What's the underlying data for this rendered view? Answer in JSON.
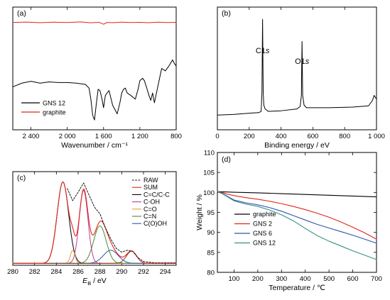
{
  "chart_data": [
    {
      "panel": "(a)",
      "type": "line",
      "xlabel": "Wavenumber / cm⁻¹",
      "ylabel": "",
      "xlim": [
        2600,
        800
      ],
      "ylim": [
        0,
        100
      ],
      "xticks": [
        2400,
        2000,
        1600,
        1200,
        800
      ],
      "xtick_labels": [
        "2 400",
        "2 000",
        "1 600",
        "1 200",
        "800"
      ],
      "grid": false,
      "legend": "bottom-left",
      "series": [
        {
          "name": "graphite",
          "color": "#e3241b",
          "x": [
            2600,
            2450,
            2300,
            2150,
            2000,
            1850,
            1750,
            1650,
            1600,
            1560,
            1500,
            1400,
            1300,
            1200,
            1100,
            1000,
            900,
            800
          ],
          "y": [
            87.5,
            87.8,
            87.3,
            87.7,
            87.4,
            87.9,
            87.2,
            87.6,
            86.0,
            87.5,
            87.3,
            87.7,
            87.4,
            87.6,
            87.3,
            87.7,
            87.4,
            87.6
          ]
        },
        {
          "name": "GNS 12",
          "color": "#000000",
          "x": [
            2600,
            2500,
            2400,
            2300,
            2200,
            2100,
            2000,
            1900,
            1800,
            1760,
            1740,
            1720,
            1700,
            1680,
            1660,
            1640,
            1620,
            1600,
            1580,
            1560,
            1540,
            1500,
            1450,
            1420,
            1400,
            1380,
            1360,
            1340,
            1300,
            1250,
            1220,
            1200,
            1170,
            1150,
            1120,
            1100,
            1080,
            1060,
            1040,
            1000,
            960,
            920,
            880,
            840,
            820,
            800
          ],
          "y": [
            35,
            38,
            39.5,
            38,
            39,
            38.5,
            38.5,
            38,
            37,
            34,
            25,
            12,
            8,
            21,
            33,
            32,
            26,
            18,
            28,
            30,
            32,
            20,
            13,
            22,
            30,
            33,
            34,
            30,
            28,
            25,
            33,
            40,
            42,
            40,
            33,
            28,
            24,
            30,
            22,
            36,
            50,
            48,
            52,
            57,
            54,
            52
          ]
        }
      ]
    },
    {
      "panel": "(b)",
      "type": "line",
      "xlabel": "Binding energy / eV",
      "ylabel": "",
      "xlim": [
        0,
        1000
      ],
      "ylim": [
        0,
        100
      ],
      "xticks": [
        0,
        200,
        400,
        600,
        800,
        1000
      ],
      "xtick_labels": [
        "0",
        "200",
        "400",
        "600",
        "800",
        "1 000"
      ],
      "grid": false,
      "annotations": [
        {
          "label": "C1",
          "italic": "s",
          "x": 284
        },
        {
          "label": "O1",
          "italic": "s",
          "x": 532
        }
      ],
      "series": [
        {
          "name": "",
          "color": "#000000",
          "x": [
            0,
            100,
            200,
            260,
            275,
            280,
            284,
            288,
            292,
            300,
            320,
            400,
            500,
            520,
            528,
            532,
            536,
            545,
            560,
            700,
            850,
            950,
            975,
            985,
            995,
            1000
          ],
          "y": [
            12,
            12.5,
            13.5,
            14,
            15,
            30,
            90,
            30,
            20,
            17,
            15,
            15.5,
            17,
            19,
            28,
            72,
            28,
            20,
            18,
            18,
            18.5,
            19.5,
            24,
            28,
            26,
            25
          ]
        }
      ]
    },
    {
      "panel": "(c)",
      "type": "line",
      "xlabel": "E",
      "xlabel_sub": "B",
      "xlabel_unit": " / eV",
      "ylabel": "",
      "xlim": [
        280,
        295
      ],
      "ylim": [
        0,
        100
      ],
      "xticks": [
        280,
        282,
        284,
        286,
        288,
        290,
        292,
        294
      ],
      "grid": false,
      "legend": "top-right",
      "raw": {
        "name": "RAW",
        "color": "#000000",
        "dash": true,
        "x": [
          285.0,
          285.5,
          286.0,
          286.5,
          287.0,
          287.5,
          288.0,
          288.5,
          289.0,
          289.5,
          290.0,
          290.5,
          291.0,
          291.5,
          292.0,
          293.0,
          294.0,
          295.0
        ],
        "y": [
          82,
          69,
          78,
          88,
          75,
          62,
          55,
          40,
          28,
          18,
          14,
          16,
          15,
          8,
          4,
          2.5,
          2.5,
          2.5
        ]
      },
      "components": [
        {
          "name": "C=C/C-C",
          "color": "#000000",
          "center": 284.6,
          "height": 87,
          "fwhm": 1.25
        },
        {
          "name": "C-OH",
          "color": "#c03aa0",
          "center": 286.5,
          "height": 78,
          "fwhm": 0.95
        },
        {
          "name": "C=O",
          "color": "#d8a436",
          "center": 285.5,
          "height": 14,
          "fwhm": 0.5
        },
        {
          "name": "C=N",
          "color": "#4c8a2e",
          "center": 288.0,
          "height": 40,
          "fwhm": 1.35
        },
        {
          "name": "C(O)OH",
          "color": "#2b57b0",
          "center": 289.0,
          "height": 14,
          "fwhm": 1.6
        },
        {
          "name": "",
          "color": "#8b3a1a",
          "center": 290.9,
          "height": 13,
          "fwhm": 1.1
        }
      ],
      "sum": {
        "name": "SUM",
        "color": "#e3241b"
      },
      "baseline": 2
    },
    {
      "panel": "(d)",
      "type": "line",
      "xlabel": "Temperature / ℃",
      "ylabel": "Weight / %",
      "xlim": [
        30,
        700
      ],
      "ylim": [
        80,
        110
      ],
      "xticks": [
        100,
        200,
        300,
        400,
        500,
        600,
        700
      ],
      "yticks": [
        80,
        85,
        90,
        95,
        100,
        105,
        110
      ],
      "grid": false,
      "legend": "bottom-left",
      "series": [
        {
          "name": "graphite",
          "color": "#000000",
          "x": [
            30,
            100,
            200,
            300,
            400,
            500,
            600,
            700
          ],
          "y": [
            100.2,
            100.05,
            99.9,
            99.7,
            99.5,
            99.3,
            99.1,
            98.9
          ]
        },
        {
          "name": "GNS 2",
          "color": "#e3241b",
          "x": [
            30,
            50,
            70,
            100,
            150,
            200,
            250,
            300,
            350,
            400,
            450,
            500,
            550,
            600,
            650,
            700
          ],
          "y": [
            100.2,
            100.0,
            99.6,
            99.2,
            98.7,
            98.3,
            97.8,
            97.2,
            96.5,
            95.7,
            94.8,
            93.8,
            92.6,
            91.3,
            89.9,
            88.3
          ]
        },
        {
          "name": "GNS 6",
          "color": "#2b57b0",
          "x": [
            30,
            50,
            70,
            100,
            150,
            200,
            250,
            300,
            350,
            400,
            450,
            500,
            550,
            600,
            650,
            700
          ],
          "y": [
            100.2,
            99.8,
            99.1,
            98.1,
            97.4,
            96.9,
            96.2,
            95.3,
            94.2,
            93.1,
            92.0,
            91.1,
            90.2,
            89.3,
            88.3,
            87.3
          ]
        },
        {
          "name": "GNS 12",
          "color": "#3a8f86",
          "x": [
            30,
            50,
            70,
            100,
            150,
            200,
            250,
            300,
            350,
            400,
            450,
            500,
            550,
            600,
            650,
            700
          ],
          "y": [
            100.2,
            99.7,
            99.0,
            97.9,
            97.1,
            96.5,
            95.6,
            94.4,
            92.9,
            91.0,
            89.2,
            87.8,
            86.6,
            85.4,
            84.3,
            83.2
          ]
        }
      ]
    }
  ]
}
